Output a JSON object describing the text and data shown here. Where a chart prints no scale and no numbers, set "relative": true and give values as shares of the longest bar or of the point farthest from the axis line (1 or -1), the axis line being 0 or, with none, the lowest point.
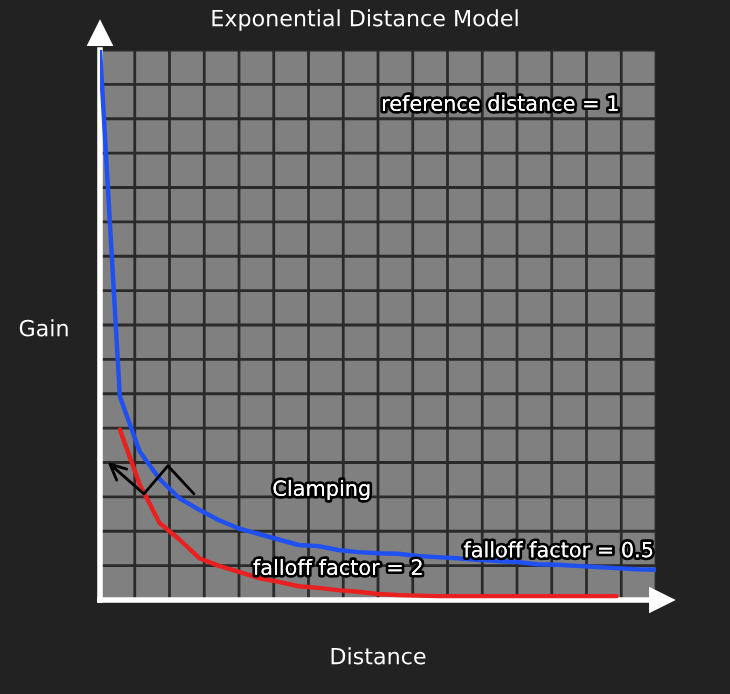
{
  "chart_data": {
    "type": "line",
    "title": "Exponential Distance Model",
    "xlabel": "Distance",
    "ylabel": "Gain",
    "relative": true,
    "grid": true,
    "marker": "none",
    "line_style": "solid",
    "annotations": [
      "reference distance = 1",
      "Clamping"
    ],
    "categories": [
      null,
      null,
      null,
      null,
      null,
      null,
      null,
      null,
      null,
      null,
      null,
      null,
      null,
      null,
      null,
      null,
      null,
      null,
      null,
      null,
      null,
      null,
      null,
      null,
      null,
      null,
      null,
      null,
      null
    ],
    "series": [
      {
        "name": "falloff factor = 0.5",
        "color": "#2050f0",
        "values": [
          1.0,
          0.37,
          0.27,
          0.22,
          0.185,
          0.164,
          0.145,
          0.13,
          0.12,
          0.11,
          0.1,
          0.098,
          0.091,
          0.087,
          0.085,
          0.084,
          0.08,
          0.078,
          0.076,
          0.073,
          0.071,
          0.069,
          0.065,
          0.064,
          0.062,
          0.06,
          0.058,
          0.056,
          0.055
        ]
      },
      {
        "name": "falloff factor = 2",
        "color": "#e82020",
        "values": [
          null,
          0.31,
          0.21,
          0.14,
          0.11,
          0.076,
          0.062,
          0.051,
          0.04,
          0.033,
          0.025,
          0.022,
          0.018,
          0.015,
          0.011,
          0.009,
          0.008,
          0.007,
          0.007,
          0.007,
          0.007,
          0.007,
          0.007,
          0.007,
          0.007,
          0.007,
          0.007,
          null,
          null
        ]
      }
    ]
  }
}
